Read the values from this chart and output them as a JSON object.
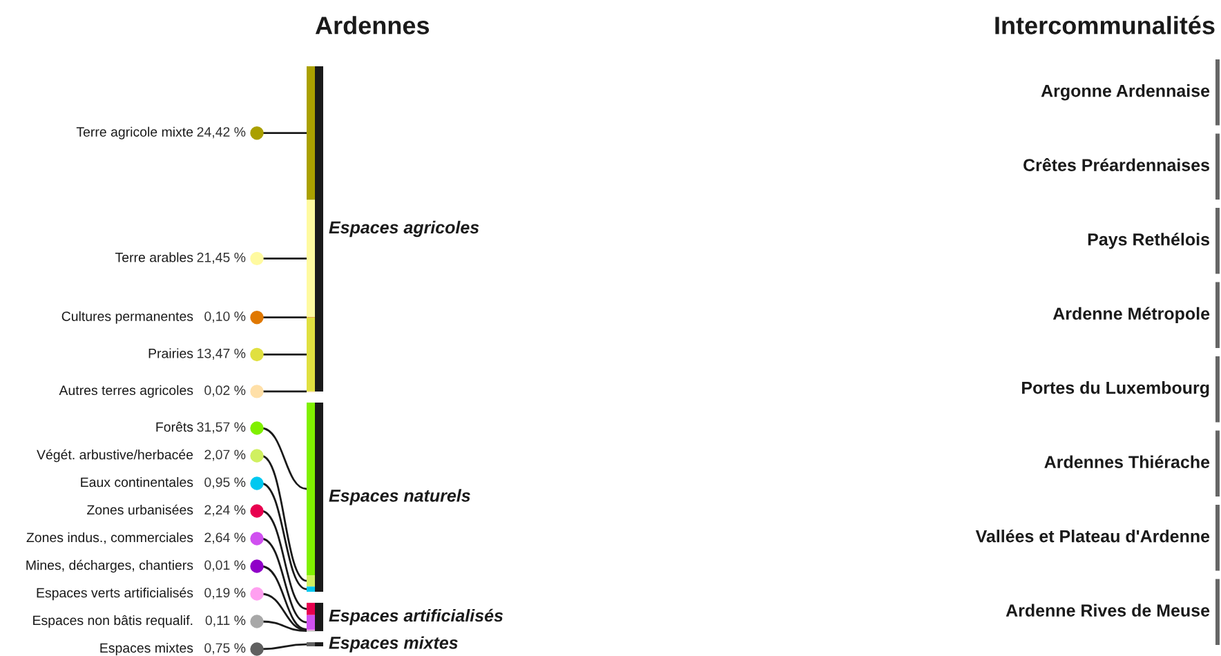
{
  "chart_data": {
    "type": "other",
    "title": "Ardennes",
    "subtitle": "Intercommunalités",
    "categories": [
      "Terre agricole mixte",
      "Terre arables",
      "Cultures permanentes",
      "Prairies",
      "Autres terres agricoles",
      "Forêts",
      "Végét. arbustive/herbacée",
      "Eaux continentales",
      "Zones urbanisées",
      "Zones indus., commerciales",
      "Mines, décharges, chantiers",
      "Espaces verts artificialisés",
      "Espaces non bâtis requalif.",
      "Espaces mixtes"
    ],
    "colors": [
      "#aaa000",
      "#fffaa0",
      "#e07800",
      "#e0e040",
      "#ffe0a8",
      "#80f000",
      "#d0f060",
      "#00c8f0",
      "#e8004f",
      "#d050f0",
      "#9000c8",
      "#ffa0f0",
      "#a8a8a8",
      "#606060"
    ],
    "series": [
      {
        "name": "Espaces agricoles",
        "color": "#1a1a1a",
        "values": [
          24.42,
          21.45,
          0.1,
          13.47,
          0.02,
          null,
          null,
          null,
          null,
          null,
          null,
          null,
          null,
          null
        ],
        "value_labels": [
          "24,42 %",
          "21,45 %",
          "0,10 %",
          "13,47 %",
          "0,02 %",
          null,
          null,
          null,
          null,
          null,
          null,
          null,
          null,
          null
        ]
      },
      {
        "name": "Espaces naturels",
        "color": "#1a1a1a",
        "values": [
          null,
          null,
          null,
          null,
          null,
          31.57,
          2.07,
          0.95,
          null,
          null,
          null,
          null,
          null,
          null
        ],
        "value_labels": [
          null,
          null,
          null,
          null,
          null,
          "31,57 %",
          "2,07 %",
          "0,95 %",
          null,
          null,
          null,
          null,
          null,
          null
        ]
      },
      {
        "name": "Espaces artificialisés",
        "color": "#1a1a1a",
        "values": [
          null,
          null,
          null,
          null,
          null,
          null,
          null,
          null,
          2.24,
          2.64,
          0.01,
          0.19,
          0.11,
          null
        ],
        "value_labels": [
          null,
          null,
          null,
          null,
          null,
          null,
          null,
          null,
          "2,24 %",
          "2,64 %",
          "0,01 %",
          "0,19 %",
          "0,11 %",
          null
        ]
      },
      {
        "name": "Espaces mixtes",
        "color": "#1a1a1a",
        "values": [
          null,
          null,
          null,
          null,
          null,
          null,
          null,
          null,
          null,
          null,
          null,
          null,
          null,
          0.75
        ],
        "value_labels": [
          null,
          null,
          null,
          null,
          null,
          null,
          null,
          null,
          null,
          null,
          null,
          null,
          null,
          "0,75 %"
        ]
      }
    ],
    "annotations": [
      "Argonne Ardennaise",
      "Crêtes Préardennaises",
      "Pays Rethélois",
      "Ardenne Métropole",
      "Portes du Luxembourg",
      "Ardennes Thiérache",
      "Vallées et Plateau d'Ardenne",
      "Ardenne Rives de Meuse"
    ]
  }
}
